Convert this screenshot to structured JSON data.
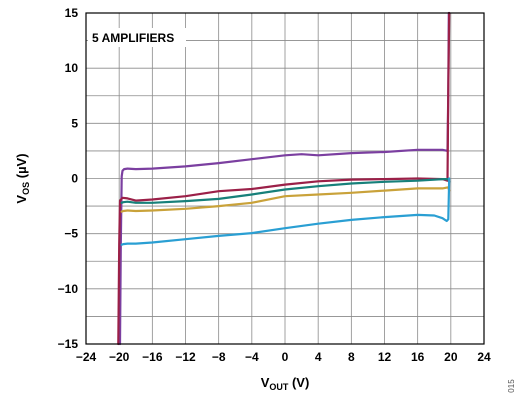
{
  "chart_data": {
    "type": "line",
    "xlabel": "V",
    "xlabel_sub": "OUT",
    "xlabel_unit": " (V)",
    "ylabel": "V",
    "ylabel_sub": "OS",
    "ylabel_unit": " (µV)",
    "xlim": [
      -24,
      24
    ],
    "ylim": [
      -15,
      15
    ],
    "xticks": [
      "−24",
      "−20",
      "−16",
      "−12",
      "−8",
      "−4",
      "0",
      "4",
      "8",
      "12",
      "16",
      "20",
      "24"
    ],
    "yticks": [
      "15",
      "10",
      "5",
      "0",
      "−5",
      "−10",
      "−15"
    ],
    "xtick_values": [
      -24,
      -20,
      -16,
      -12,
      -8,
      -4,
      0,
      4,
      8,
      12,
      16,
      20,
      24
    ],
    "ytick_values": [
      15,
      10,
      5,
      0,
      -5,
      -10,
      -15
    ],
    "grid": true,
    "annotation": "5 AMPLIFIERS",
    "figure_id": "015",
    "series": [
      {
        "color": "#7b3fa0",
        "x": [
          -19.9,
          -19.8,
          -19.7,
          -19.6,
          -19.4,
          -19.0,
          -18.0,
          -16.0,
          -12.0,
          -8.0,
          -4.0,
          0.0,
          2.0,
          4.0,
          8.0,
          12.0,
          16.0,
          19.0,
          19.6,
          19.7,
          19.75
        ],
        "y": [
          -15,
          -6.0,
          0.2,
          0.7,
          0.85,
          0.9,
          0.85,
          0.9,
          1.1,
          1.4,
          1.75,
          2.1,
          2.2,
          2.1,
          2.3,
          2.4,
          2.6,
          2.6,
          2.5,
          8.0,
          15
        ]
      },
      {
        "color": "#9b2048",
        "x": [
          -20.1,
          -20.0,
          -19.9,
          -19.6,
          -19.0,
          -18.0,
          -16.0,
          -12.0,
          -8.0,
          -4.0,
          0.0,
          4.0,
          8.0,
          12.0,
          16.0,
          19.0,
          19.6,
          19.7,
          19.8
        ],
        "y": [
          -15,
          -6.0,
          -2.0,
          -1.75,
          -1.8,
          -2.0,
          -1.9,
          -1.6,
          -1.15,
          -0.95,
          -0.55,
          -0.25,
          -0.1,
          -0.05,
          0.0,
          -0.05,
          -0.2,
          8.0,
          15
        ]
      },
      {
        "color": "#17807a",
        "x": [
          -19.7,
          -19.5,
          -19.0,
          -18.0,
          -16.0,
          -12.0,
          -8.0,
          -4.0,
          0.0,
          4.0,
          8.0,
          12.0,
          16.0,
          19.0,
          19.7,
          19.8
        ],
        "y": [
          -2.2,
          -2.15,
          -2.1,
          -2.2,
          -2.2,
          -2.05,
          -1.85,
          -1.45,
          -1.0,
          -0.7,
          -0.45,
          -0.3,
          -0.2,
          -0.05,
          -0.05,
          -0.3
        ]
      },
      {
        "color": "#c9a23a",
        "x": [
          -19.7,
          -19.5,
          -19.0,
          -18.0,
          -16.0,
          -12.0,
          -8.0,
          -4.0,
          0.0,
          4.0,
          8.0,
          12.0,
          16.0,
          19.0,
          19.7,
          19.8
        ],
        "y": [
          -3.0,
          -2.95,
          -2.9,
          -2.95,
          -2.9,
          -2.75,
          -2.5,
          -2.2,
          -1.6,
          -1.45,
          -1.3,
          -1.1,
          -0.9,
          -0.9,
          -0.8,
          -1.1
        ]
      },
      {
        "color": "#2a9fd3",
        "x": [
          -19.7,
          -19.5,
          -19.0,
          -18.0,
          -16.0,
          -12.0,
          -8.0,
          -4.0,
          0.0,
          4.0,
          8.0,
          12.0,
          16.0,
          18.0,
          19.0,
          19.5,
          19.7,
          19.8
        ],
        "y": [
          -6.0,
          -5.95,
          -5.9,
          -5.9,
          -5.8,
          -5.5,
          -5.2,
          -4.95,
          -4.5,
          -4.1,
          -3.75,
          -3.5,
          -3.3,
          -3.35,
          -3.6,
          -3.85,
          -3.7,
          0.0
        ]
      }
    ]
  }
}
